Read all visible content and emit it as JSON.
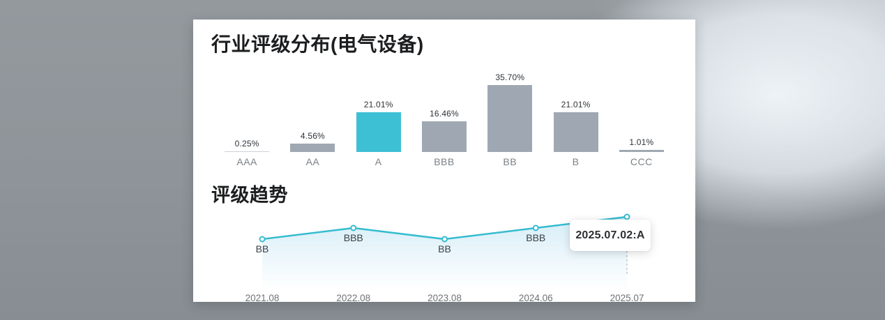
{
  "page": {
    "bg_base": "#8e9499",
    "bg_streak": "#edf3f7",
    "card_bg": "#ffffff"
  },
  "chart_data": [
    {
      "type": "bar",
      "title": "行业评级分布(电气设备)",
      "categories": [
        "AAA",
        "AA",
        "A",
        "BBB",
        "BB",
        "B",
        "CCC"
      ],
      "values": [
        0.25,
        4.56,
        21.01,
        16.46,
        35.7,
        21.01,
        1.01
      ],
      "value_labels": [
        "0.25%",
        "4.56%",
        "21.01%",
        "16.46%",
        "35.70%",
        "21.01%",
        "1.01%"
      ],
      "highlight_category": "A",
      "highlight_index": 2,
      "bar_color": "#9fa8b2",
      "highlight_color": "#3ec0d4",
      "min_bar_color": "#ccd1d6",
      "ylim": [
        0,
        40
      ],
      "grid": false,
      "legend": false
    },
    {
      "type": "line",
      "title": "评级趋势",
      "x": [
        "2021.08",
        "2022.08",
        "2023.08",
        "2024.06",
        "2025.07"
      ],
      "ratings": [
        "BB",
        "BBB",
        "BB",
        "BBB",
        "A"
      ],
      "rating_scale": [
        "CCC",
        "B",
        "BB",
        "BBB",
        "A",
        "AA",
        "AAA"
      ],
      "values": [
        2,
        3,
        2,
        3,
        4
      ],
      "point_labels": [
        "BB",
        "BBB",
        "BB",
        "BBB",
        ""
      ],
      "tooltip": "2025.07.02:A",
      "line_color": "#35bccf",
      "fill_color": "#cfeaf6",
      "marker_fill": "#ffffff",
      "dashed_guide_color": "#c3c8cd",
      "axis_label_color": "#6d7277",
      "grid": false,
      "legend": false
    }
  ]
}
